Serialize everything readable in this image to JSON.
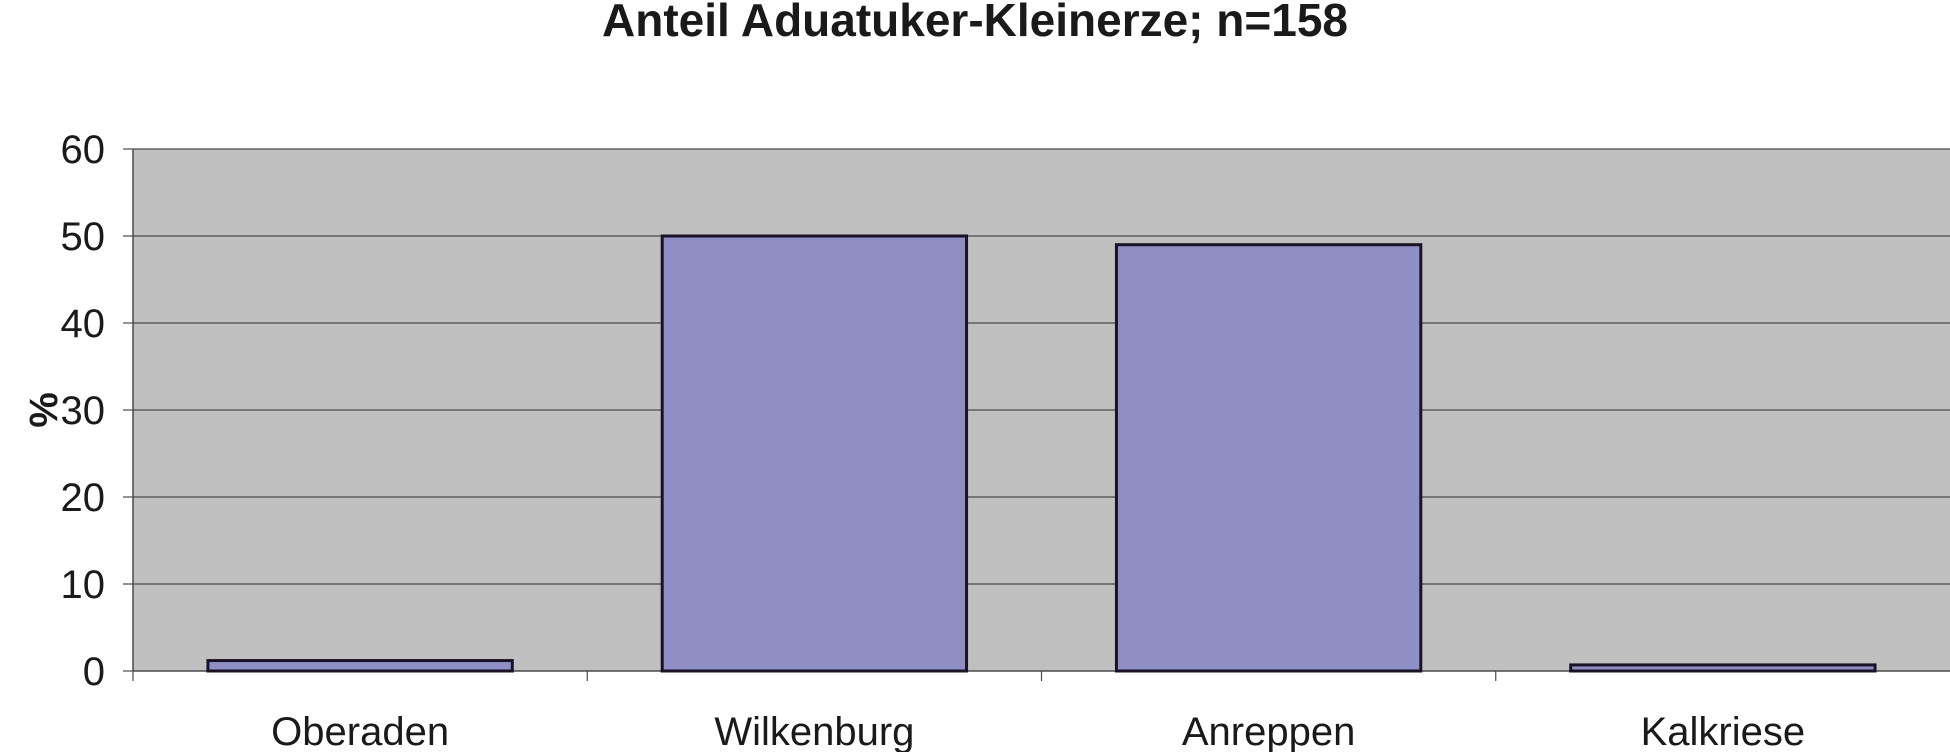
{
  "chart_data": {
    "type": "bar",
    "title": "Anteil Aduatuker-Kleinerze; n=158",
    "xlabel": "",
    "ylabel": "%",
    "categories": [
      "Oberaden",
      "Wilkenburg",
      "Anreppen",
      "Kalkriese"
    ],
    "values": [
      1.2,
      50,
      49,
      0.7
    ],
    "ylim": [
      0,
      60
    ],
    "yticks": [
      0,
      10,
      20,
      30,
      40,
      50,
      60
    ],
    "grid": true,
    "legend": "none",
    "colors": {
      "bar_fill": "#8f8fc5",
      "bar_stroke": "#1a1326",
      "plot_background": "#c0c0c0",
      "gridline": "#4a4a4a",
      "text": "#1a1a1a"
    }
  }
}
